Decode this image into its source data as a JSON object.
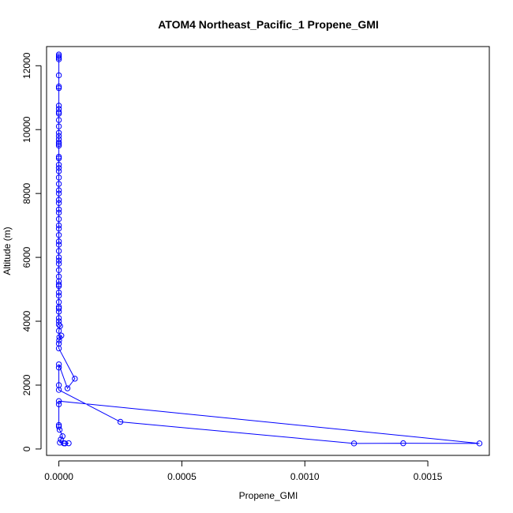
{
  "chart_data": {
    "type": "line",
    "title": "ATOM4 Northeast_Pacific_1 Propene_GMI",
    "xlabel": "Propene_GMI",
    "ylabel": "Altitude (m)",
    "xlim": [
      -5e-05,
      0.00175
    ],
    "ylim": [
      -200,
      12600
    ],
    "x_ticks": [
      0,
      0.0005,
      0.001,
      0.0015
    ],
    "x_tick_labels": [
      "0.0000",
      "0.0005",
      "0.0010",
      "0.0015"
    ],
    "y_ticks": [
      0,
      2000,
      4000,
      6000,
      8000,
      10000,
      12000
    ],
    "y_tick_labels": [
      "0",
      "2000",
      "4000",
      "6000",
      "8000",
      "10000",
      "12000"
    ],
    "grid": false,
    "legend": "none",
    "marker": "open-circle",
    "series_color": "#0000ff",
    "series": [
      {
        "points": [
          [
            0.0,
            12350
          ],
          [
            0.0,
            12300
          ],
          [
            0.0,
            12250
          ],
          [
            0.0,
            12200
          ],
          [
            0.0,
            11700
          ],
          [
            0.0,
            11350
          ],
          [
            0.0,
            11300
          ],
          [
            0.0,
            10750
          ],
          [
            0.0,
            10650
          ],
          [
            0.0,
            10550
          ],
          [
            0.0,
            10500
          ],
          [
            0.0,
            10300
          ],
          [
            0.0,
            10100
          ],
          [
            0.0,
            9900
          ],
          [
            0.0,
            9800
          ],
          [
            0.0,
            9700
          ],
          [
            0.0,
            9600
          ],
          [
            0.0,
            9550
          ],
          [
            0.0,
            9500
          ],
          [
            0.0,
            9150
          ],
          [
            0.0,
            9100
          ],
          [
            0.0,
            8900
          ],
          [
            0.0,
            8800
          ],
          [
            0.0,
            8700
          ],
          [
            0.0,
            8500
          ],
          [
            0.0,
            8300
          ],
          [
            0.0,
            8100
          ],
          [
            0.0,
            8000
          ],
          [
            0.0,
            7800
          ],
          [
            0.0,
            7700
          ],
          [
            0.0,
            7500
          ],
          [
            0.0,
            7400
          ],
          [
            0.0,
            7200
          ],
          [
            0.0,
            7000
          ],
          [
            0.0,
            6900
          ],
          [
            0.0,
            6700
          ],
          [
            0.0,
            6500
          ],
          [
            0.0,
            6400
          ],
          [
            0.0,
            6200
          ],
          [
            0.0,
            6000
          ],
          [
            0.0,
            5900
          ],
          [
            0.0,
            5800
          ],
          [
            0.0,
            5600
          ],
          [
            0.0,
            5400
          ],
          [
            0.0,
            5250
          ],
          [
            0.0,
            5150
          ],
          [
            0.0,
            5100
          ],
          [
            0.0,
            4900
          ],
          [
            0.0,
            4800
          ],
          [
            0.0,
            4600
          ],
          [
            0.0,
            4450
          ],
          [
            0.0,
            4400
          ],
          [
            0.0,
            4300
          ],
          [
            0.0,
            4100
          ],
          [
            0.0,
            4000
          ],
          [
            0.0,
            3900
          ],
          [
            5e-06,
            3850
          ],
          [
            0.0,
            3700
          ],
          [
            2e-06,
            3500
          ],
          [
            1e-05,
            3550
          ],
          [
            1e-06,
            3400
          ],
          [
            0.0,
            3300
          ],
          [
            0.0,
            3150
          ],
          [
            6.5e-05,
            2200
          ],
          [
            3.5e-05,
            1900
          ],
          [
            0.0,
            2650
          ],
          [
            0.0,
            2550
          ],
          [
            0.0,
            2000
          ],
          [
            0.0,
            1850
          ],
          [
            0.00025,
            850
          ],
          [
            0.0012,
            175
          ],
          [
            0.0014,
            180
          ],
          [
            0.00171,
            175
          ],
          [
            0.0,
            1500
          ],
          [
            0.0,
            1400
          ],
          [
            0.0,
            750
          ],
          [
            0.0,
            700
          ],
          [
            3e-06,
            600
          ],
          [
            1.5e-05,
            400
          ],
          [
            8e-06,
            300
          ],
          [
            4e-06,
            200
          ],
          [
            2e-05,
            180
          ],
          [
            4e-05,
            180
          ],
          [
            2.5e-05,
            175
          ]
        ]
      }
    ]
  }
}
